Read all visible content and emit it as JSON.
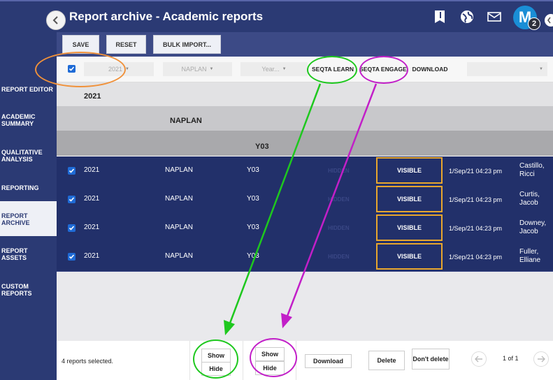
{
  "header": {
    "title": "Report archive - Academic reports",
    "avatar_letter": "M",
    "avatar_badge": "2",
    "icons": [
      "back-icon",
      "bookmark-icon",
      "globe-icon",
      "mail-icon"
    ]
  },
  "sidebar": {
    "items": [
      {
        "label": "REPORT EDITOR",
        "active": false
      },
      {
        "label": "ACADEMIC SUMMARY",
        "active": false
      },
      {
        "label": "QUALITATIVE ANALYSIS",
        "active": false
      },
      {
        "label": "REPORTING",
        "active": false
      },
      {
        "label": "REPORT ARCHIVE",
        "active": true
      },
      {
        "label": "REPORT ASSETS",
        "active": false
      },
      {
        "label": "CUSTOM REPORTS",
        "active": false
      }
    ]
  },
  "toolbar": {
    "save_label": "SAVE",
    "reset_label": "RESET",
    "bulk_import_label": "BULK IMPORT..."
  },
  "filters": {
    "year_value": "2021",
    "type_value": "NAPLAN",
    "level_placeholder": "Year...",
    "download_value": ""
  },
  "columns": {
    "seqta_learn": "SEQTA LEARN",
    "seqta_engage": "SEQTA ENGAGE",
    "download": "DOWNLOAD"
  },
  "groups": {
    "year": "2021",
    "type": "NAPLAN",
    "level": "Y03"
  },
  "rows": [
    {
      "year": "2021",
      "type": "NAPLAN",
      "level": "Y03",
      "learn": "HIDDEN",
      "engage": "VISIBLE",
      "date": "1/Sep/21 04:23 pm",
      "name": "Castillo, Ricci"
    },
    {
      "year": "2021",
      "type": "NAPLAN",
      "level": "Y03",
      "learn": "HIDDEN",
      "engage": "VISIBLE",
      "date": "1/Sep/21 04:23 pm",
      "name": "Curtis, Jacob"
    },
    {
      "year": "2021",
      "type": "NAPLAN",
      "level": "Y03",
      "learn": "HIDDEN",
      "engage": "VISIBLE",
      "date": "1/Sep/21 04:23 pm",
      "name": "Downey, Jacob"
    },
    {
      "year": "2021",
      "type": "NAPLAN",
      "level": "Y03",
      "learn": "HIDDEN",
      "engage": "VISIBLE",
      "date": "1/Sep/21 04:23 pm",
      "name": "Fuller, Elliane"
    }
  ],
  "footer": {
    "selected_text": "4 reports selected.",
    "learn_show": "Show",
    "learn_hide": "Hide",
    "engage_show": "Show",
    "engage_hide": "Hide",
    "download_label": "Download",
    "delete_label": "Delete",
    "dont_delete_label": "Don't delete",
    "page_text": "1 of 1"
  },
  "colors": {
    "navy": "#2b3a74",
    "row_navy": "#22306a",
    "visible_border": "#e8a62d",
    "annotation_orange": "#f0913a",
    "annotation_green": "#1ec81e",
    "annotation_purple": "#c21fc8"
  }
}
